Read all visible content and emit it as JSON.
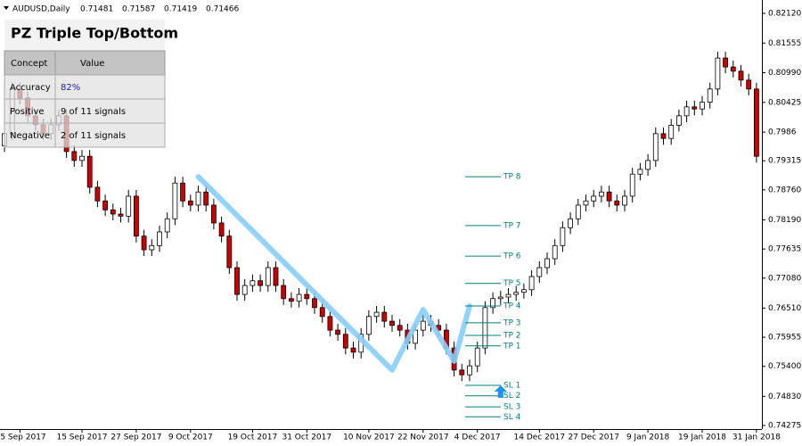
{
  "header": {
    "symbol": "AUDUSD,Daily",
    "open": 0.71481,
    "high": 0.71587,
    "low": 0.71419,
    "close": 0.71466
  },
  "panel": {
    "title": "PZ Triple Top/Bottom",
    "columns": [
      "Concept",
      "Value"
    ],
    "rows": [
      [
        "Accuracy",
        "82%"
      ],
      [
        "Positive",
        "9 of 11 signals"
      ],
      [
        "Negative",
        "2 of 11 signals"
      ]
    ]
  },
  "chart_data": {
    "type": "candlestick",
    "up_color": "#ffffff",
    "down_color": "#cc0000",
    "categories": [
      null,
      null,
      "5 Sep 2017",
      null,
      null,
      null,
      null,
      null,
      null,
      null,
      "15 Sep 2017",
      null,
      null,
      null,
      null,
      null,
      null,
      "27 Sep 2017",
      null,
      null,
      null,
      null,
      null,
      null,
      "9 Oct 2017",
      null,
      null,
      null,
      null,
      null,
      null,
      null,
      "19 Oct 2017",
      null,
      null,
      null,
      null,
      null,
      null,
      "31 Oct 2017",
      null,
      null,
      null,
      null,
      null,
      null,
      null,
      "10 Nov 2017",
      null,
      null,
      null,
      null,
      null,
      null,
      "22 Nov 2017",
      null,
      null,
      null,
      null,
      null,
      null,
      "4 Dec 2017",
      null,
      null,
      null,
      null,
      null,
      null,
      null,
      "14 Dec 2017",
      null,
      null,
      null,
      null,
      null,
      null,
      "27 Dec 2017",
      null,
      null,
      null,
      null,
      null,
      null,
      "9 Jan 2018",
      null,
      null,
      null,
      null,
      null,
      null,
      "19 Jan 2018",
      null,
      null,
      null,
      null,
      null,
      null,
      "31 Jan 2018"
    ],
    "open": [
      0.796,
      0.7983,
      0.8068,
      0.8051,
      0.8017,
      0.8,
      0.7983,
      0.8,
      0.8017,
      0.7949,
      0.7932,
      0.794,
      0.7881,
      0.7855,
      0.7838,
      0.783,
      0.7826,
      0.7864,
      0.7788,
      0.7762,
      0.777,
      0.7796,
      0.7821,
      0.7889,
      0.7855,
      0.7847,
      0.7872,
      0.7847,
      0.7813,
      0.7788,
      0.7728,
      0.7677,
      0.7694,
      0.7703,
      0.7694,
      0.7728,
      0.7694,
      0.7669,
      0.7664,
      0.7677,
      0.7669,
      0.7652,
      0.7635,
      0.7609,
      0.7601,
      0.7575,
      0.7567,
      0.7601,
      0.7635,
      0.7643,
      0.7626,
      0.7618,
      0.7609,
      0.7584,
      0.7609,
      0.7626,
      0.7618,
      0.7609,
      0.7575,
      0.7533,
      0.7524,
      0.7541,
      0.7575,
      0.7652,
      0.7669,
      0.7672,
      0.7677,
      0.7681,
      0.7686,
      0.7711,
      0.7728,
      0.7745,
      0.777,
      0.7804,
      0.7821,
      0.7847,
      0.7855,
      0.7864,
      0.7872,
      0.7855,
      0.7847,
      0.7864,
      0.7906,
      0.7915,
      0.7932,
      0.7983,
      0.7974,
      0.7999,
      0.8017,
      0.8034,
      0.803,
      0.8043,
      0.8068,
      0.8127,
      0.811,
      0.8102,
      0.8085,
      0.8068
    ],
    "high": [
      0.7995,
      0.808,
      0.808,
      0.8063,
      0.8029,
      0.8012,
      0.8012,
      0.8029,
      0.8029,
      0.7961,
      0.7952,
      0.7952,
      0.7893,
      0.7867,
      0.785,
      0.7842,
      0.7876,
      0.7876,
      0.78,
      0.7782,
      0.7808,
      0.7833,
      0.7901,
      0.7901,
      0.7867,
      0.7884,
      0.7884,
      0.7859,
      0.7825,
      0.78,
      0.774,
      0.7706,
      0.7715,
      0.7715,
      0.774,
      0.774,
      0.7706,
      0.7681,
      0.7689,
      0.7689,
      0.7681,
      0.7664,
      0.7647,
      0.7621,
      0.7613,
      0.7587,
      0.7613,
      0.7647,
      0.7655,
      0.7655,
      0.7638,
      0.763,
      0.7621,
      0.7621,
      0.7638,
      0.7638,
      0.763,
      0.7621,
      0.7587,
      0.7545,
      0.7553,
      0.7587,
      0.7664,
      0.7681,
      0.7684,
      0.7689,
      0.7693,
      0.7698,
      0.7723,
      0.774,
      0.7757,
      0.7782,
      0.7816,
      0.7833,
      0.7859,
      0.7867,
      0.7876,
      0.7884,
      0.7884,
      0.7867,
      0.7876,
      0.7918,
      0.7927,
      0.7944,
      0.7995,
      0.7995,
      0.8011,
      0.8029,
      0.8046,
      0.8046,
      0.8055,
      0.808,
      0.8139,
      0.8139,
      0.8122,
      0.8114,
      0.8097,
      0.808
    ],
    "low": [
      0.7948,
      0.7971,
      0.8039,
      0.8005,
      0.7988,
      0.7971,
      0.7971,
      0.7988,
      0.7937,
      0.792,
      0.792,
      0.7869,
      0.7843,
      0.7826,
      0.7818,
      0.7814,
      0.7814,
      0.7776,
      0.775,
      0.775,
      0.7758,
      0.7784,
      0.7809,
      0.7843,
      0.7835,
      0.7835,
      0.7835,
      0.7801,
      0.7776,
      0.7716,
      0.7665,
      0.7665,
      0.7682,
      0.7682,
      0.7682,
      0.7682,
      0.7657,
      0.7652,
      0.7652,
      0.7657,
      0.764,
      0.7623,
      0.7597,
      0.7589,
      0.7563,
      0.7555,
      0.7555,
      0.7589,
      0.7623,
      0.7614,
      0.7606,
      0.7597,
      0.7572,
      0.7572,
      0.7597,
      0.7606,
      0.7597,
      0.7563,
      0.7521,
      0.7512,
      0.7512,
      0.7529,
      0.7563,
      0.764,
      0.7657,
      0.766,
      0.7665,
      0.7669,
      0.7674,
      0.7699,
      0.7716,
      0.7733,
      0.7758,
      0.7792,
      0.7809,
      0.7835,
      0.7843,
      0.7852,
      0.7843,
      0.7835,
      0.7835,
      0.7852,
      0.7894,
      0.7903,
      0.792,
      0.7962,
      0.7962,
      0.7987,
      0.8005,
      0.8018,
      0.8018,
      0.8031,
      0.8056,
      0.8098,
      0.809,
      0.8073,
      0.8056,
      0.7928
    ],
    "close": [
      0.7983,
      0.8068,
      0.8051,
      0.8017,
      0.8,
      0.7983,
      0.8,
      0.8017,
      0.7949,
      0.7932,
      0.794,
      0.7881,
      0.7855,
      0.7838,
      0.783,
      0.7826,
      0.7864,
      0.7788,
      0.7762,
      0.777,
      0.7796,
      0.7821,
      0.7889,
      0.7855,
      0.7847,
      0.7872,
      0.7847,
      0.7813,
      0.7788,
      0.7728,
      0.7677,
      0.7694,
      0.7703,
      0.7694,
      0.7728,
      0.7694,
      0.7669,
      0.7664,
      0.7677,
      0.7669,
      0.7652,
      0.7635,
      0.7609,
      0.7601,
      0.7575,
      0.7567,
      0.7601,
      0.7635,
      0.7643,
      0.7626,
      0.7618,
      0.7609,
      0.7584,
      0.7609,
      0.7626,
      0.7618,
      0.7609,
      0.7575,
      0.7533,
      0.7524,
      0.7541,
      0.7575,
      0.7652,
      0.7669,
      0.7672,
      0.7677,
      0.7681,
      0.7686,
      0.7711,
      0.7728,
      0.7745,
      0.777,
      0.7804,
      0.7821,
      0.7847,
      0.7855,
      0.7864,
      0.7872,
      0.7855,
      0.7847,
      0.7864,
      0.7906,
      0.7915,
      0.7932,
      0.7983,
      0.7974,
      0.7999,
      0.8017,
      0.8034,
      0.803,
      0.8043,
      0.8068,
      0.8127,
      0.811,
      0.8102,
      0.8085,
      0.8068,
      0.794
    ],
    "pattern": {
      "color": "#87cefa",
      "x": [
        25,
        50,
        54,
        58,
        60
      ],
      "values": [
        0.7901,
        0.7533,
        0.7648,
        0.755,
        0.7655
      ]
    },
    "signal": {
      "color": "#1e90ff",
      "x": 64,
      "value": 0.7504
    },
    "levels_color": "#008080",
    "levels": [
      {
        "name": "TP 8",
        "value": 0.7901
      },
      {
        "name": "TP 7",
        "value": 0.7808
      },
      {
        "name": "TP 6",
        "value": 0.775
      },
      {
        "name": "TP 5",
        "value": 0.7698
      },
      {
        "name": "TP 4",
        "value": 0.7655
      },
      {
        "name": "TP 3",
        "value": 0.7623
      },
      {
        "name": "TP 2",
        "value": 0.7599
      },
      {
        "name": "TP 1",
        "value": 0.7579
      },
      {
        "name": "SL 1",
        "value": 0.7504
      },
      {
        "name": "SL 2",
        "value": 0.7484
      },
      {
        "name": "SL 3",
        "value": 0.7463
      },
      {
        "name": "SL 4",
        "value": 0.7444
      }
    ],
    "ylim": [
      0.74207,
      0.82375
    ],
    "yticks": [
      {
        "value": 0.8212,
        "label": "0.82120"
      },
      0.81555,
      {
        "value": 0.8099,
        "label": "0.80990"
      },
      0.80425,
      0.7986,
      0.79315,
      {
        "value": 0.7876,
        "label": "0.78760"
      },
      {
        "value": 0.7819,
        "label": "0.78190"
      },
      0.77635,
      {
        "value": 0.7708,
        "label": "0.77080"
      },
      {
        "value": 0.7651,
        "label": "0.76510"
      },
      0.75955,
      {
        "value": 0.754,
        "label": "0.75400"
      },
      {
        "value": 0.7483,
        "label": "0.74830"
      },
      0.74275
    ]
  }
}
